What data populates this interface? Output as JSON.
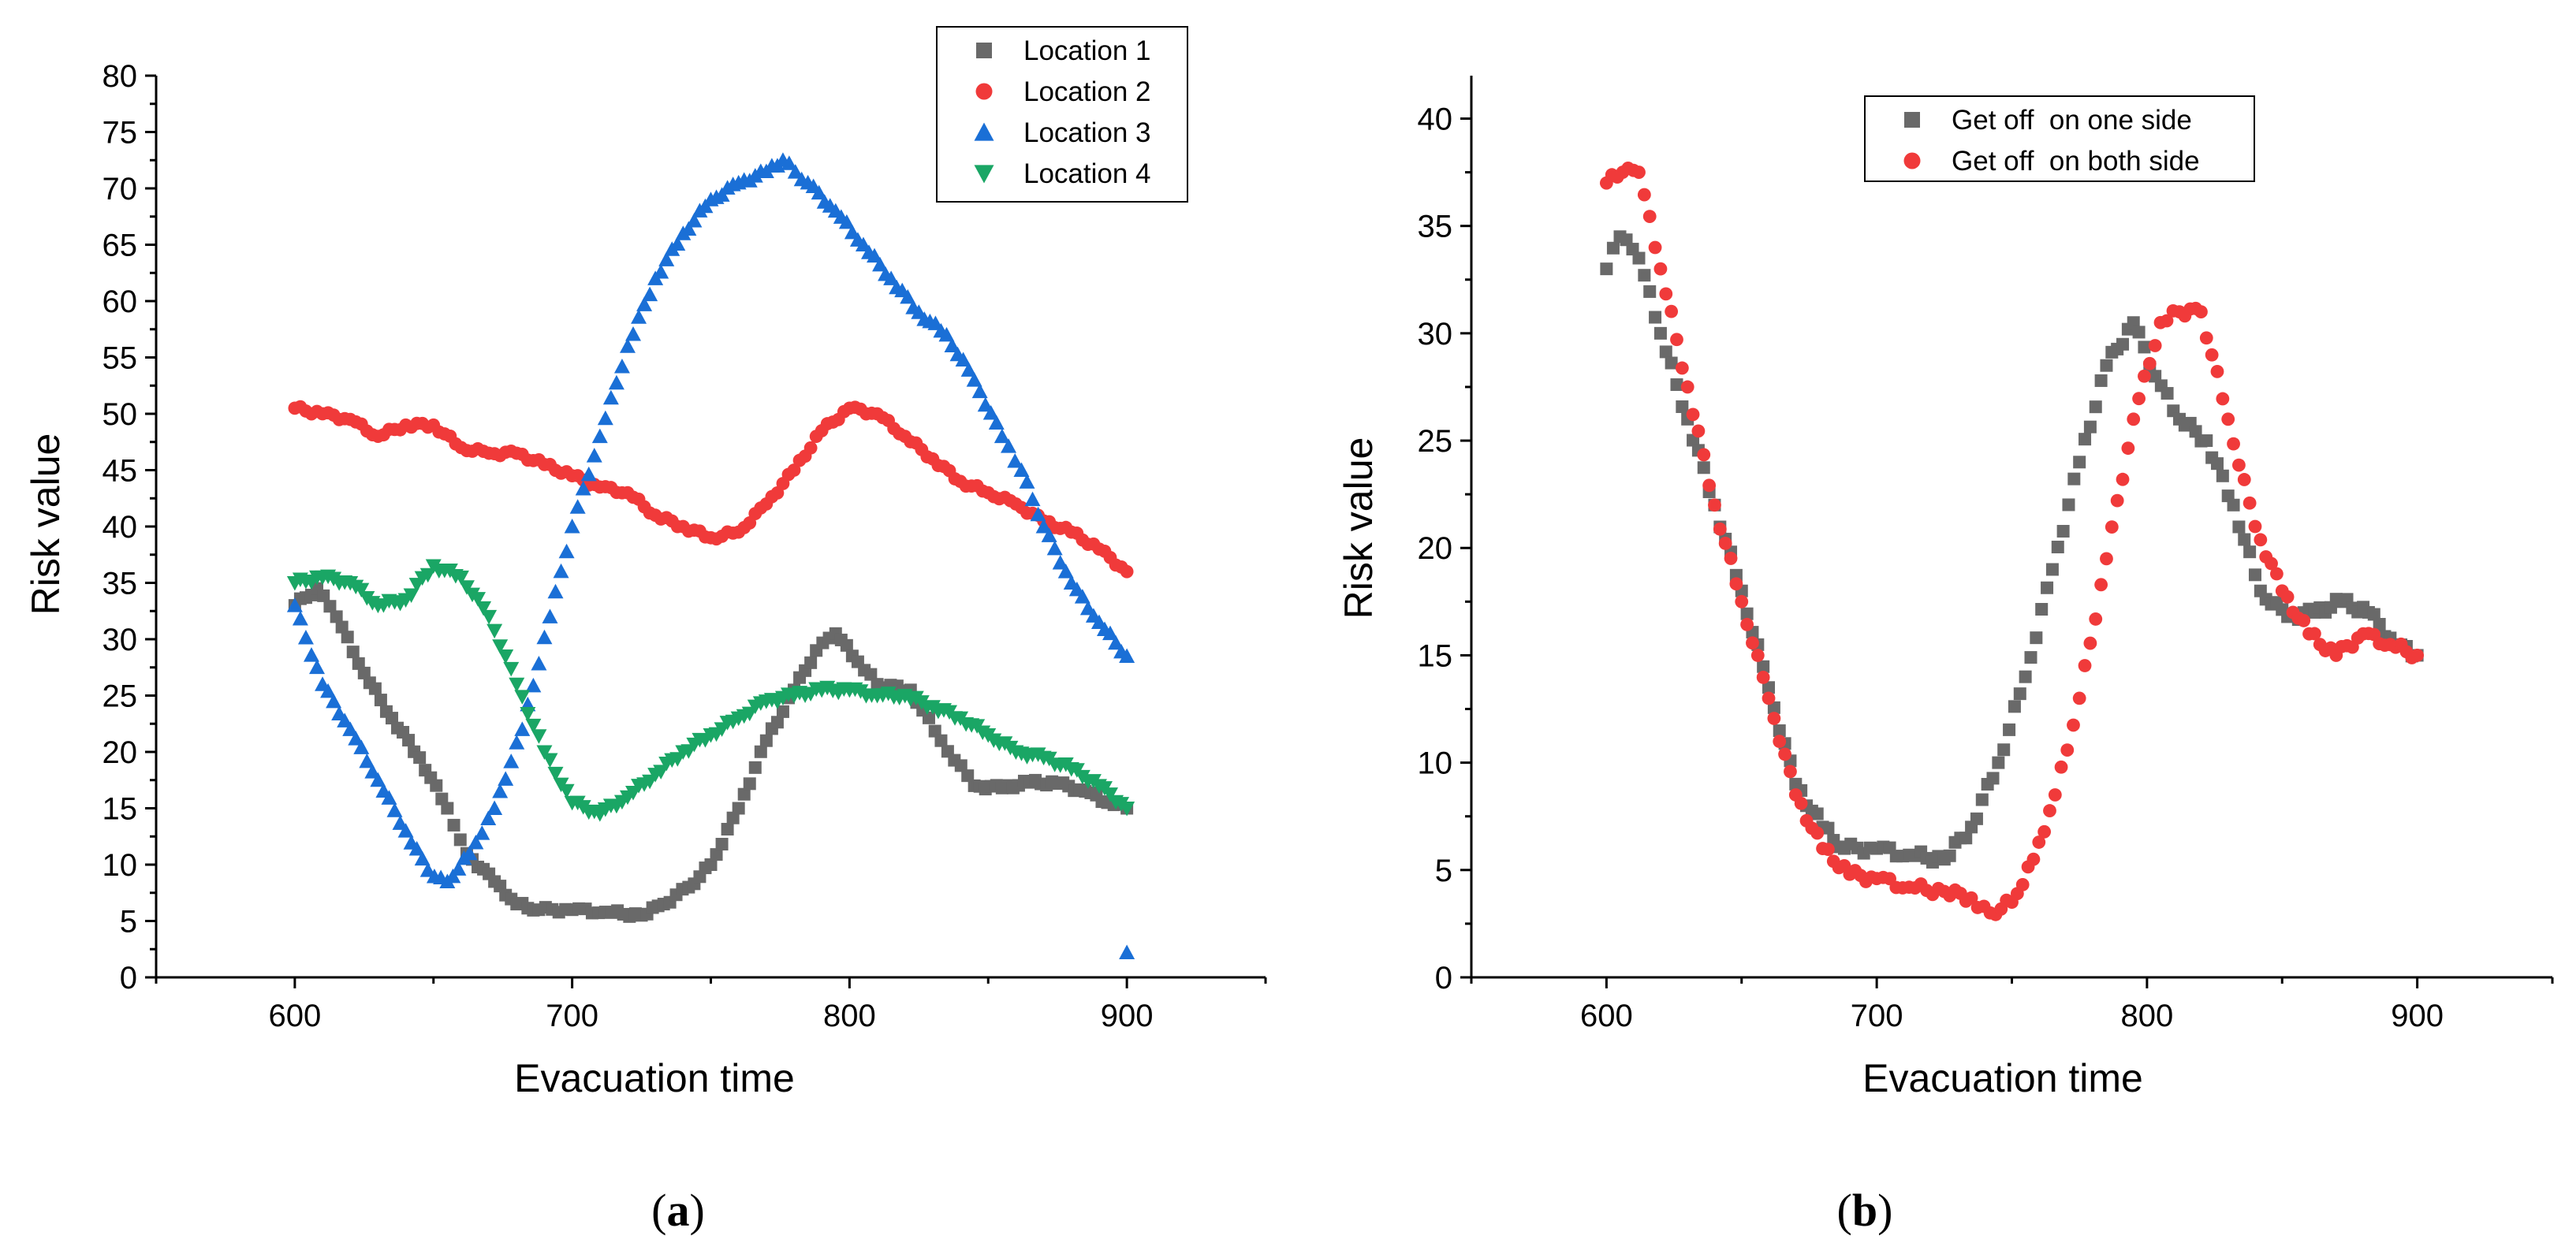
{
  "chart_data": [
    {
      "type": "scatter",
      "panel_label": "a",
      "xlabel": "Evacuation time",
      "ylabel": "Risk value",
      "xlim": [
        550,
        950
      ],
      "ylim": [
        0,
        80
      ],
      "xticks": [
        600,
        700,
        800,
        900
      ],
      "yticks": [
        0,
        5,
        10,
        15,
        20,
        25,
        30,
        35,
        40,
        45,
        50,
        55,
        60,
        65,
        70,
        75,
        80
      ],
      "legend_position": "top-right",
      "series": [
        {
          "name": "Location 1",
          "marker": "square",
          "color": "#696969",
          "points": [
            [
              600,
              33
            ],
            [
              608,
              34.5
            ],
            [
              615,
              32
            ],
            [
              625,
              27
            ],
            [
              635,
              23
            ],
            [
              645,
              19.5
            ],
            [
              655,
              15
            ],
            [
              662,
              11
            ],
            [
              672,
              8.5
            ],
            [
              680,
              6.5
            ],
            [
              688,
              6
            ],
            [
              700,
              6
            ],
            [
              712,
              5.8
            ],
            [
              725,
              5.5
            ],
            [
              733,
              6.5
            ],
            [
              742,
              8
            ],
            [
              750,
              10
            ],
            [
              760,
              15
            ],
            [
              770,
              21
            ],
            [
              780,
              25.5
            ],
            [
              788,
              29
            ],
            [
              795,
              30.5
            ],
            [
              803,
              28
            ],
            [
              810,
              26
            ],
            [
              822,
              25.5
            ],
            [
              833,
              21
            ],
            [
              845,
              17
            ],
            [
              855,
              16.8
            ],
            [
              865,
              17.3
            ],
            [
              875,
              17.2
            ],
            [
              885,
              16.5
            ],
            [
              893,
              15.5
            ],
            [
              900,
              15
            ]
          ]
        },
        {
          "name": "Location 2",
          "marker": "circle",
          "color": "#f03a3a",
          "points": [
            [
              600,
              50.5
            ],
            [
              610,
              50
            ],
            [
              620,
              49.5
            ],
            [
              630,
              48
            ],
            [
              640,
              49
            ],
            [
              650,
              49
            ],
            [
              660,
              47
            ],
            [
              670,
              46.5
            ],
            [
              680,
              46.5
            ],
            [
              690,
              45.5
            ],
            [
              700,
              44.5
            ],
            [
              710,
              43.5
            ],
            [
              720,
              43
            ],
            [
              730,
              41
            ],
            [
              740,
              40
            ],
            [
              750,
              39
            ],
            [
              760,
              39.5
            ],
            [
              770,
              42
            ],
            [
              780,
              45
            ],
            [
              790,
              48.5
            ],
            [
              800,
              50.5
            ],
            [
              810,
              50
            ],
            [
              820,
              48
            ],
            [
              830,
              46
            ],
            [
              840,
              44
            ],
            [
              850,
              43
            ],
            [
              860,
              42
            ],
            [
              870,
              40.5
            ],
            [
              880,
              39.5
            ],
            [
              890,
              38
            ],
            [
              900,
              36
            ]
          ]
        },
        {
          "name": "Location 3",
          "marker": "triangle-up",
          "color": "#1a6fd6",
          "points": [
            [
              600,
              33
            ],
            [
              610,
              26
            ],
            [
              620,
              22
            ],
            [
              630,
              17.5
            ],
            [
              640,
              13
            ],
            [
              648,
              9.5
            ],
            [
              655,
              8.5
            ],
            [
              663,
              11
            ],
            [
              672,
              15
            ],
            [
              682,
              22
            ],
            [
              692,
              32
            ],
            [
              700,
              40
            ],
            [
              710,
              48
            ],
            [
              720,
              56
            ],
            [
              730,
              62
            ],
            [
              740,
              66
            ],
            [
              750,
              69
            ],
            [
              760,
              70.5
            ],
            [
              770,
              71.5
            ],
            [
              776,
              72.5
            ],
            [
              785,
              70.5
            ],
            [
              795,
              68
            ],
            [
              805,
              65
            ],
            [
              815,
              62
            ],
            [
              825,
              59
            ],
            [
              835,
              57
            ],
            [
              845,
              53
            ],
            [
              855,
              48
            ],
            [
              862,
              45
            ],
            [
              870,
              40
            ],
            [
              880,
              35
            ],
            [
              890,
              31.5
            ],
            [
              900,
              28.5
            ],
            [
              900,
              2.2
            ]
          ]
        },
        {
          "name": "Location 4",
          "marker": "triangle-down",
          "color": "#1aa665",
          "points": [
            [
              600,
              35
            ],
            [
              610,
              35.5
            ],
            [
              620,
              35
            ],
            [
              630,
              33
            ],
            [
              640,
              33.5
            ],
            [
              650,
              36.5
            ],
            [
              660,
              35.5
            ],
            [
              670,
              32
            ],
            [
              680,
              26
            ],
            [
              690,
              20
            ],
            [
              700,
              15.5
            ],
            [
              710,
              14.5
            ],
            [
              720,
              16
            ],
            [
              730,
              18
            ],
            [
              740,
              20
            ],
            [
              750,
              21.5
            ],
            [
              760,
              23
            ],
            [
              770,
              24.5
            ],
            [
              780,
              25
            ],
            [
              790,
              25.5
            ],
            [
              800,
              25.5
            ],
            [
              810,
              25
            ],
            [
              820,
              25
            ],
            [
              830,
              24
            ],
            [
              840,
              23
            ],
            [
              850,
              21.5
            ],
            [
              860,
              20
            ],
            [
              870,
              19.5
            ],
            [
              880,
              18.5
            ],
            [
              890,
              17
            ],
            [
              900,
              15
            ]
          ]
        }
      ]
    },
    {
      "type": "scatter",
      "panel_label": "b",
      "xlabel": "Evacuation time",
      "ylabel": "Risk value",
      "xlim": [
        550,
        950
      ],
      "ylim": [
        0,
        42
      ],
      "xticks": [
        600,
        700,
        800,
        900
      ],
      "yticks": [
        0,
        5,
        10,
        15,
        20,
        25,
        30,
        35,
        40
      ],
      "legend_position": "top-center",
      "series": [
        {
          "name": "Get off  on one side",
          "marker": "square",
          "color": "#696969",
          "points": [
            [
              600,
              33
            ],
            [
              605,
              34.5
            ],
            [
              612,
              33.5
            ],
            [
              620,
              30
            ],
            [
              630,
              26
            ],
            [
              640,
              22
            ],
            [
              650,
              18
            ],
            [
              660,
              13.5
            ],
            [
              670,
              9
            ],
            [
              680,
              7
            ],
            [
              688,
              6
            ],
            [
              700,
              6
            ],
            [
              712,
              5.7
            ],
            [
              725,
              5.5
            ],
            [
              735,
              7
            ],
            [
              745,
              10
            ],
            [
              755,
              14
            ],
            [
              765,
              19
            ],
            [
              775,
              24
            ],
            [
              785,
              28.5
            ],
            [
              795,
              30.5
            ],
            [
              803,
              28
            ],
            [
              812,
              26
            ],
            [
              822,
              25
            ],
            [
              832,
              22
            ],
            [
              842,
              18
            ],
            [
              852,
              16.8
            ],
            [
              862,
              17
            ],
            [
              872,
              17.5
            ],
            [
              882,
              17
            ],
            [
              892,
              15.5
            ],
            [
              900,
              15
            ]
          ]
        },
        {
          "name": "Get off  on both side",
          "marker": "circle",
          "color": "#f03a3a",
          "points": [
            [
              600,
              37
            ],
            [
              606,
              37.5
            ],
            [
              612,
              37.5
            ],
            [
              620,
              33
            ],
            [
              630,
              27.5
            ],
            [
              640,
              22
            ],
            [
              650,
              17.5
            ],
            [
              660,
              13
            ],
            [
              670,
              8.5
            ],
            [
              680,
              6
            ],
            [
              690,
              4.8
            ],
            [
              700,
              4.6
            ],
            [
              712,
              4.2
            ],
            [
              725,
              4
            ],
            [
              735,
              3.7
            ],
            [
              742,
              3
            ],
            [
              750,
              3.5
            ],
            [
              758,
              5.5
            ],
            [
              766,
              8.5
            ],
            [
              775,
              13
            ],
            [
              785,
              19.5
            ],
            [
              795,
              26
            ],
            [
              805,
              30.5
            ],
            [
              812,
              31
            ],
            [
              820,
              31
            ],
            [
              830,
              26
            ],
            [
              840,
              21
            ],
            [
              850,
              18
            ],
            [
              860,
              16
            ],
            [
              870,
              15
            ],
            [
              880,
              16
            ],
            [
              890,
              15.5
            ],
            [
              900,
              15
            ]
          ]
        }
      ]
    }
  ]
}
